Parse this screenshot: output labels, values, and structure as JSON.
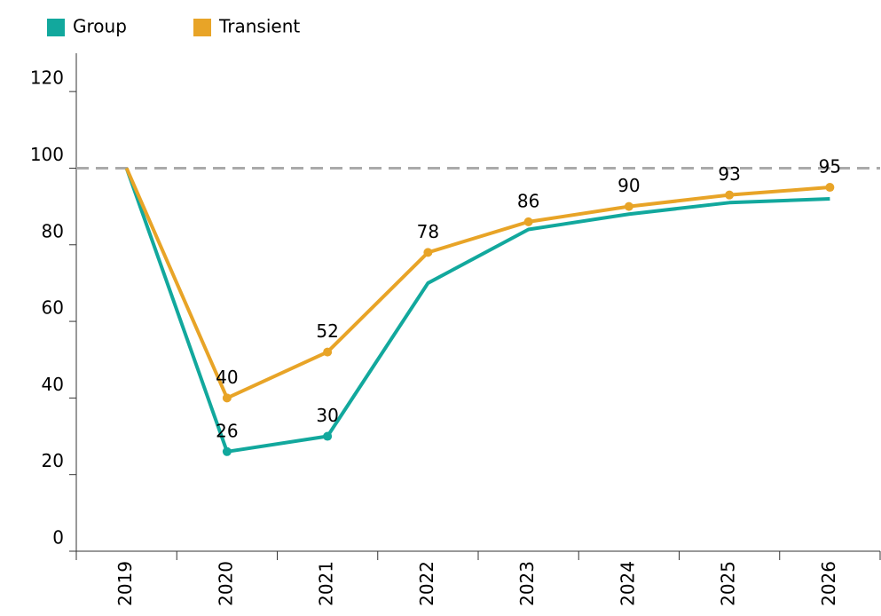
{
  "chart_data": {
    "type": "line",
    "categories": [
      "2019",
      "2020",
      "2021",
      "2022",
      "2023",
      "2024",
      "2025",
      "2026"
    ],
    "series": [
      {
        "name": "Group",
        "color": "#12a89d",
        "values": [
          100,
          26,
          30,
          70,
          84,
          88,
          91,
          92
        ],
        "value_labels": [
          null,
          "26",
          "30",
          null,
          null,
          null,
          null,
          null
        ]
      },
      {
        "name": "Transient",
        "color": "#e8a427",
        "values": [
          100,
          40,
          52,
          78,
          86,
          90,
          93,
          95
        ],
        "value_labels": [
          null,
          "40",
          "52",
          "78",
          "86",
          "90",
          "93",
          "95"
        ]
      }
    ],
    "ylim": [
      0,
      130
    ],
    "yticks": [
      0,
      20,
      40,
      60,
      80,
      100,
      120
    ],
    "reference_line": 100,
    "legend": "top-left"
  }
}
